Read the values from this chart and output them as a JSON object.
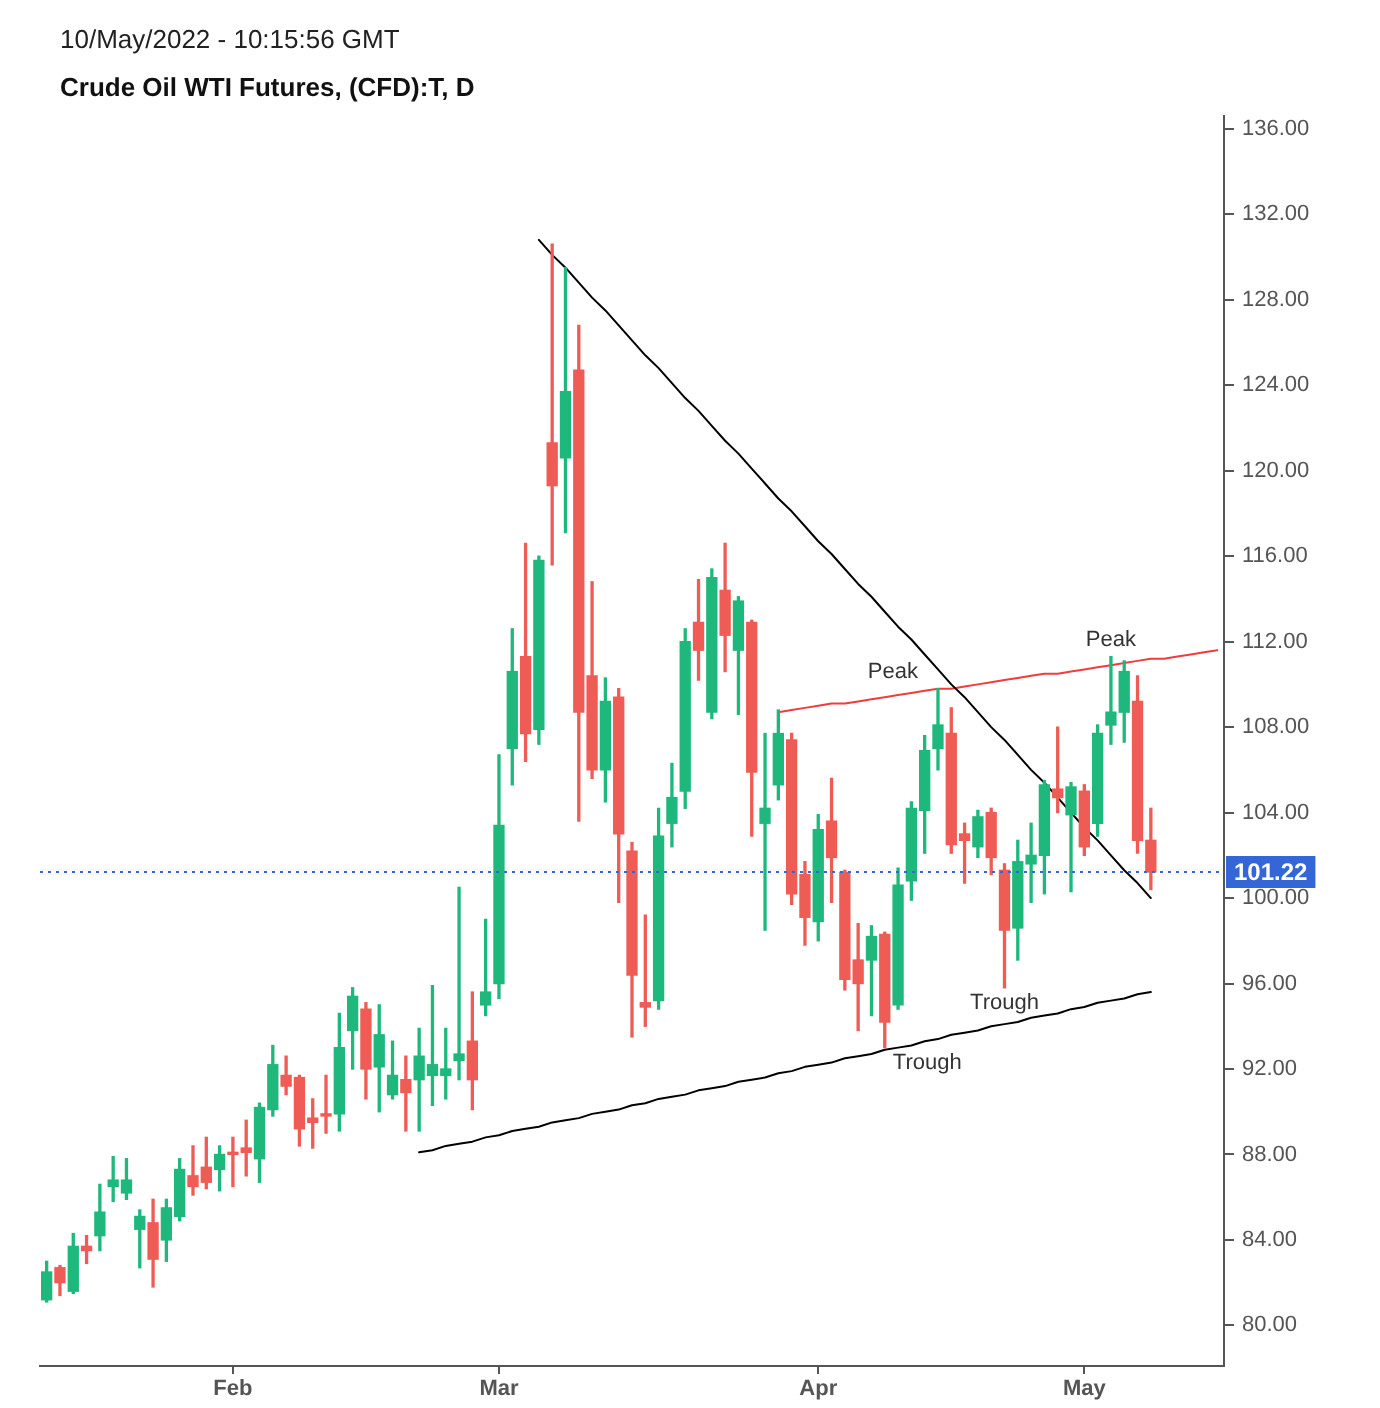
{
  "chart_data": {
    "type": "candlestick",
    "title": "Crude Oil WTI Futures, (CFD):T, D",
    "subtitle": "10/May/2022 - 10:15:56 GMT",
    "categories": [
      null,
      null,
      null,
      null,
      null,
      null,
      null,
      null,
      null,
      null,
      null,
      null,
      null,
      null,
      "Feb",
      null,
      null,
      null,
      null,
      null,
      null,
      null,
      null,
      null,
      null,
      null,
      null,
      null,
      null,
      null,
      null,
      null,
      null,
      null,
      "Mar",
      null,
      null,
      null,
      null,
      null,
      null,
      null,
      null,
      null,
      null,
      null,
      null,
      null,
      null,
      null,
      null,
      null,
      null,
      null,
      null,
      null,
      null,
      null,
      "Apr",
      null,
      null,
      null,
      null,
      null,
      null,
      null,
      null,
      null,
      null,
      null,
      null,
      null,
      null,
      null,
      null,
      null,
      null,
      null,
      "May",
      null,
      null,
      null,
      null,
      null,
      null,
      null,
      null,
      null,
      null
    ],
    "ohlc": [
      [
        81.2,
        83.0,
        81.1,
        82.5
      ],
      [
        82.7,
        82.8,
        81.4,
        82.0
      ],
      [
        81.6,
        84.3,
        81.5,
        83.7
      ],
      [
        83.7,
        84.2,
        82.9,
        83.5
      ],
      [
        84.2,
        86.6,
        83.5,
        85.3
      ],
      [
        86.5,
        87.9,
        85.8,
        86.8
      ],
      [
        86.2,
        87.8,
        85.9,
        86.8
      ],
      [
        84.5,
        85.4,
        82.7,
        85.1
      ],
      [
        84.8,
        85.9,
        81.8,
        83.1
      ],
      [
        84.0,
        85.9,
        83.0,
        85.5
      ],
      [
        85.1,
        87.8,
        84.9,
        87.3
      ],
      [
        87.0,
        88.4,
        86.1,
        86.5
      ],
      [
        87.4,
        88.8,
        86.4,
        86.7
      ],
      [
        87.3,
        88.4,
        86.3,
        88.0
      ],
      [
        88.1,
        88.8,
        86.5,
        88.0
      ],
      [
        88.3,
        89.6,
        87.0,
        88.1
      ],
      [
        87.8,
        90.4,
        86.7,
        90.2
      ],
      [
        90.1,
        93.1,
        89.8,
        92.2
      ],
      [
        91.7,
        92.6,
        90.8,
        91.2
      ],
      [
        91.6,
        91.7,
        88.4,
        89.2
      ],
      [
        89.7,
        90.6,
        88.3,
        89.5
      ],
      [
        89.9,
        91.7,
        89.0,
        89.8
      ],
      [
        89.9,
        94.6,
        89.1,
        93.0
      ],
      [
        93.8,
        95.8,
        92.0,
        95.4
      ],
      [
        94.8,
        95.1,
        90.6,
        92.0
      ],
      [
        92.1,
        95.0,
        90.0,
        93.6
      ],
      [
        90.8,
        93.3,
        90.6,
        91.7
      ],
      [
        91.5,
        92.6,
        89.1,
        90.9
      ],
      [
        91.5,
        93.9,
        89.1,
        92.6
      ],
      [
        91.7,
        95.9,
        90.3,
        92.2
      ],
      [
        91.7,
        93.9,
        90.6,
        92.0
      ],
      [
        92.4,
        100.5,
        91.5,
        92.7
      ],
      [
        93.3,
        95.6,
        90.1,
        91.5
      ],
      [
        95.0,
        99.0,
        94.5,
        95.6
      ],
      [
        96.0,
        106.7,
        95.3,
        103.4
      ],
      [
        107.0,
        112.6,
        105.3,
        110.6
      ],
      [
        111.3,
        116.6,
        106.4,
        107.7
      ],
      [
        107.9,
        116.0,
        107.2,
        115.8
      ],
      [
        121.3,
        130.6,
        115.6,
        119.3
      ],
      [
        120.6,
        129.5,
        117.1,
        123.7
      ],
      [
        124.7,
        126.8,
        103.6,
        108.7
      ],
      [
        110.4,
        114.8,
        105.6,
        106.0
      ],
      [
        106.0,
        110.3,
        104.5,
        109.2
      ],
      [
        109.4,
        109.8,
        99.8,
        103.0
      ],
      [
        102.2,
        102.6,
        93.5,
        96.4
      ],
      [
        95.1,
        99.2,
        94.0,
        94.9
      ],
      [
        95.2,
        104.2,
        94.8,
        102.9
      ],
      [
        103.5,
        106.3,
        102.4,
        104.7
      ],
      [
        105.0,
        112.6,
        104.2,
        112.0
      ],
      [
        112.9,
        114.9,
        110.2,
        111.6
      ],
      [
        108.7,
        115.4,
        108.4,
        115.0
      ],
      [
        114.4,
        116.6,
        110.6,
        112.3
      ],
      [
        111.6,
        114.1,
        108.6,
        113.9
      ],
      [
        112.9,
        113.0,
        102.9,
        105.9
      ],
      [
        103.5,
        107.7,
        98.5,
        104.2
      ],
      [
        105.3,
        108.8,
        104.6,
        107.7
      ],
      [
        107.4,
        107.7,
        99.7,
        100.2
      ],
      [
        101.1,
        101.7,
        97.8,
        99.1
      ],
      [
        98.9,
        103.9,
        98.0,
        103.2
      ],
      [
        103.6,
        105.6,
        99.8,
        101.9
      ],
      [
        101.2,
        101.3,
        95.7,
        96.2
      ],
      [
        97.1,
        98.8,
        93.8,
        96.0
      ],
      [
        97.1,
        98.7,
        94.5,
        98.2
      ],
      [
        98.3,
        98.4,
        93.0,
        94.2
      ],
      [
        95.0,
        101.4,
        94.8,
        100.6
      ],
      [
        100.8,
        104.5,
        99.9,
        104.2
      ],
      [
        104.1,
        107.6,
        102.1,
        106.9
      ],
      [
        107.0,
        109.8,
        106.0,
        108.1
      ],
      [
        107.7,
        108.9,
        102.1,
        102.5
      ],
      [
        103.0,
        103.5,
        100.7,
        102.7
      ],
      [
        102.4,
        104.1,
        101.9,
        103.8
      ],
      [
        104.0,
        104.2,
        101.1,
        101.9
      ],
      [
        101.3,
        101.6,
        95.8,
        98.5
      ],
      [
        98.6,
        102.7,
        97.1,
        101.7
      ],
      [
        101.6,
        103.5,
        99.8,
        102.0
      ],
      [
        102.0,
        105.5,
        100.2,
        105.3
      ],
      [
        105.1,
        108.0,
        104.0,
        104.7
      ],
      [
        103.9,
        105.4,
        100.3,
        105.2
      ],
      [
        105.0,
        105.3,
        102.0,
        102.4
      ],
      [
        103.5,
        108.1,
        102.9,
        107.7
      ],
      [
        108.1,
        111.3,
        107.2,
        108.7
      ],
      [
        108.7,
        111.1,
        107.3,
        110.6
      ],
      [
        109.2,
        110.4,
        102.1,
        102.7
      ],
      [
        102.7,
        104.2,
        100.4,
        101.22
      ],
      null,
      null,
      null,
      null,
      null
    ],
    "colors": [
      "#1fb87c",
      "#ef5b55",
      "#1fb87c",
      "#ef5b55",
      "#1fb87c",
      "#1fb87c",
      "#1fb87c",
      "#1fb87c",
      "#ef5b55",
      "#1fb87c",
      "#1fb87c",
      "#ef5b55",
      "#ef5b55",
      "#1fb87c",
      "#ef5b55",
      "#ef5b55",
      "#1fb87c",
      "#1fb87c",
      "#ef5b55",
      "#ef5b55",
      "#ef5b55",
      "#ef5b55",
      "#1fb87c",
      "#1fb87c",
      "#ef5b55",
      "#1fb87c",
      "#1fb87c",
      "#ef5b55",
      "#1fb87c",
      "#1fb87c",
      "#1fb87c",
      "#1fb87c",
      "#ef5b55",
      "#1fb87c",
      "#1fb87c",
      "#1fb87c",
      "#ef5b55",
      "#1fb87c",
      "#ef5b55",
      "#1fb87c",
      "#ef5b55",
      "#ef5b55",
      "#1fb87c",
      "#ef5b55",
      "#ef5b55",
      "#ef5b55",
      "#1fb87c",
      "#1fb87c",
      "#1fb87c",
      "#ef5b55",
      "#1fb87c",
      "#ef5b55",
      "#1fb87c",
      "#ef5b55",
      "#1fb87c",
      "#1fb87c",
      "#ef5b55",
      "#ef5b55",
      "#1fb87c",
      "#ef5b55",
      "#ef5b55",
      "#ef5b55",
      "#1fb87c",
      "#ef5b55",
      "#1fb87c",
      "#1fb87c",
      "#1fb87c",
      "#1fb87c",
      "#ef5b55",
      "#ef5b55",
      "#1fb87c",
      "#ef5b55",
      "#ef5b55",
      "#1fb87c",
      "#1fb87c",
      "#1fb87c",
      "#ef5b55",
      "#1fb87c",
      "#ef5b55",
      "#1fb87c",
      "#1fb87c",
      "#1fb87c",
      "#ef5b55",
      "#ef5b55",
      null,
      null,
      null,
      null,
      null
    ],
    "series": [
      {
        "type": "line",
        "color": "#000000",
        "values": [
          null,
          null,
          null,
          null,
          null,
          null,
          null,
          null,
          null,
          null,
          null,
          null,
          null,
          null,
          null,
          null,
          null,
          null,
          null,
          null,
          null,
          null,
          null,
          null,
          null,
          null,
          null,
          null,
          null,
          null,
          null,
          null,
          null,
          null,
          null,
          null,
          null,
          130.8,
          130.1,
          129.5,
          128.8,
          128.1,
          127.5,
          126.8,
          126.1,
          125.4,
          124.8,
          124.1,
          123.4,
          122.8,
          122.1,
          121.4,
          120.8,
          120.1,
          119.4,
          118.7,
          118.1,
          117.4,
          116.7,
          116.1,
          115.4,
          114.7,
          114.1,
          113.4,
          112.7,
          112.1,
          111.4,
          110.7,
          110.0,
          109.4,
          108.7,
          108.0,
          107.4,
          106.7,
          106.0,
          105.4,
          104.7,
          104.0,
          103.3,
          102.7,
          102.0,
          101.3,
          100.7,
          100.0,
          null,
          null,
          null,
          null,
          null
        ]
      },
      {
        "type": "line",
        "color": "#f03c3c",
        "values": [
          null,
          null,
          null,
          null,
          null,
          null,
          null,
          null,
          null,
          null,
          null,
          null,
          null,
          null,
          null,
          null,
          null,
          null,
          null,
          null,
          null,
          null,
          null,
          null,
          null,
          null,
          null,
          null,
          null,
          null,
          null,
          null,
          null,
          null,
          null,
          null,
          null,
          null,
          null,
          null,
          null,
          null,
          null,
          null,
          null,
          null,
          null,
          null,
          null,
          null,
          null,
          null,
          null,
          null,
          null,
          108.7,
          108.8,
          108.9,
          109.0,
          109.1,
          109.1,
          109.2,
          109.3,
          109.4,
          109.5,
          109.6,
          109.7,
          109.8,
          109.8,
          109.9,
          110.0,
          110.1,
          110.2,
          110.3,
          110.4,
          110.5,
          110.5,
          110.6,
          110.7,
          110.8,
          110.9,
          111.0,
          111.1,
          111.2,
          111.2,
          111.3,
          111.4,
          111.5,
          111.6
        ]
      },
      {
        "type": "line",
        "color": "#000000",
        "values": [
          null,
          null,
          null,
          null,
          null,
          null,
          null,
          null,
          null,
          null,
          null,
          null,
          null,
          null,
          null,
          null,
          null,
          null,
          null,
          null,
          null,
          null,
          null,
          null,
          null,
          null,
          null,
          null,
          88.1,
          88.2,
          88.4,
          88.5,
          88.6,
          88.8,
          88.9,
          89.1,
          89.2,
          89.3,
          89.5,
          89.6,
          89.7,
          89.9,
          90.0,
          90.1,
          90.3,
          90.4,
          90.6,
          90.7,
          90.8,
          91.0,
          91.1,
          91.2,
          91.4,
          91.5,
          91.6,
          91.8,
          91.9,
          92.1,
          92.2,
          92.3,
          92.5,
          92.6,
          92.7,
          92.9,
          93.0,
          93.1,
          93.3,
          93.4,
          93.6,
          93.7,
          93.8,
          94.0,
          94.1,
          94.2,
          94.4,
          94.5,
          94.6,
          94.8,
          94.9,
          95.1,
          95.2,
          95.3,
          95.5,
          95.6,
          null,
          null,
          null,
          null,
          null
        ]
      }
    ],
    "ylim": [
      78.1,
      136.6
    ],
    "yticks": [
      {
        "value": 80,
        "label": "80.00"
      },
      {
        "value": 84,
        "label": "84.00"
      },
      {
        "value": 88,
        "label": "88.00"
      },
      {
        "value": 92,
        "label": "92.00"
      },
      {
        "value": 96,
        "label": "96.00"
      },
      {
        "value": 100,
        "label": "100.00"
      },
      {
        "value": 104,
        "label": "104.00"
      },
      {
        "value": 108,
        "label": "108.00"
      },
      {
        "value": 112,
        "label": "112.00"
      },
      {
        "value": 116,
        "label": "116.00"
      },
      {
        "value": 120,
        "label": "120.00"
      },
      {
        "value": 124,
        "label": "124.00"
      },
      {
        "value": 128,
        "label": "128.00"
      },
      {
        "value": 132,
        "label": "132.00"
      },
      {
        "value": 136,
        "label": "136.00"
      }
    ],
    "ref_lines": [
      {
        "axis": "y",
        "value": 101.22,
        "label": "101.22",
        "color": "#3566d8",
        "line_style": "dotted"
      }
    ],
    "annotations": [
      {
        "text": "Peak",
        "y": 109.8
      },
      {
        "text": "Peak",
        "y": 111.3
      },
      {
        "text": "Trough",
        "y": 93.0
      },
      {
        "text": "Trough",
        "y": 95.8
      }
    ]
  }
}
